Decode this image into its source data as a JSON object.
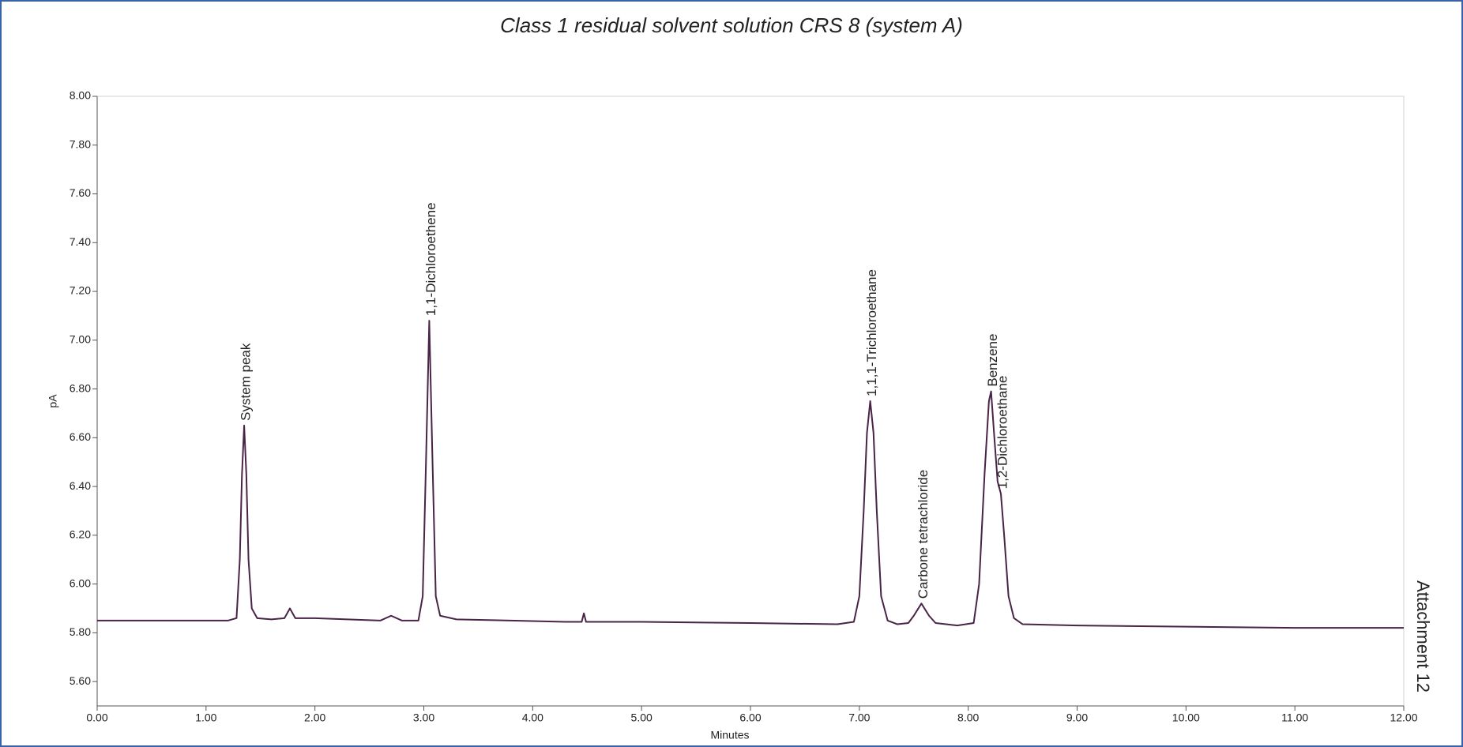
{
  "chart_data": {
    "type": "line",
    "title": "Class 1 residual solvent solution CRS 8 (system A)",
    "x_label": "Minutes",
    "y_label": "pA",
    "side_note": "Attachment 12",
    "x": [
      0,
      0.5,
      1.0,
      1.2,
      1.28,
      1.31,
      1.33,
      1.35,
      1.37,
      1.39,
      1.42,
      1.47,
      1.6,
      1.72,
      1.77,
      1.82,
      2.0,
      2.3,
      2.6,
      2.7,
      2.8,
      2.95,
      2.99,
      3.02,
      3.05,
      3.08,
      3.11,
      3.15,
      3.3,
      3.8,
      4.3,
      4.45,
      4.47,
      4.49,
      5.0,
      6.0,
      6.8,
      6.95,
      7.0,
      7.04,
      7.07,
      7.1,
      7.13,
      7.16,
      7.2,
      7.26,
      7.35,
      7.45,
      7.5,
      7.57,
      7.64,
      7.7,
      7.9,
      8.05,
      8.1,
      8.15,
      8.19,
      8.21,
      8.24,
      8.27,
      8.3,
      8.33,
      8.37,
      8.42,
      8.5,
      9.0,
      10.0,
      11.0,
      12.0
    ],
    "series": [
      {
        "color": "#4a2446",
        "values": [
          5.85,
          5.85,
          5.85,
          5.85,
          5.86,
          6.1,
          6.45,
          6.65,
          6.45,
          6.1,
          5.9,
          5.86,
          5.855,
          5.86,
          5.9,
          5.86,
          5.86,
          5.855,
          5.85,
          5.87,
          5.85,
          5.85,
          5.95,
          6.5,
          7.08,
          6.5,
          5.95,
          5.87,
          5.855,
          5.85,
          5.845,
          5.845,
          5.88,
          5.845,
          5.845,
          5.84,
          5.835,
          5.845,
          5.95,
          6.3,
          6.62,
          6.75,
          6.62,
          6.3,
          5.95,
          5.85,
          5.835,
          5.84,
          5.87,
          5.92,
          5.87,
          5.84,
          5.83,
          5.84,
          6.0,
          6.45,
          6.75,
          6.79,
          6.6,
          6.42,
          6.37,
          6.2,
          5.95,
          5.86,
          5.835,
          5.83,
          5.825,
          5.82,
          5.82
        ]
      }
    ],
    "annotations": [
      {
        "text": "System peak",
        "x": 1.35,
        "y": 6.65
      },
      {
        "text": "1,1-Dichloroethene",
        "x": 3.05,
        "y": 7.08
      },
      {
        "text": "1,1,1-Trichloroethane",
        "x": 7.1,
        "y": 6.75
      },
      {
        "text": "Carbone tetrachloride",
        "x": 7.57,
        "y": 5.92
      },
      {
        "text": "Benzene",
        "x": 8.21,
        "y": 6.79
      },
      {
        "text": "1,2-Dichloroethane",
        "x": 8.3,
        "y": 6.37
      }
    ],
    "xlim": [
      0,
      12
    ],
    "ylim": [
      5.5,
      8.0
    ],
    "xticks": [
      {
        "value": 0,
        "label": "0.00"
      },
      {
        "value": 1,
        "label": "1.00"
      },
      {
        "value": 2,
        "label": "2.00"
      },
      {
        "value": 3,
        "label": "3.00"
      },
      {
        "value": 4,
        "label": "4.00"
      },
      {
        "value": 5,
        "label": "5.00"
      },
      {
        "value": 6,
        "label": "6.00"
      },
      {
        "value": 7,
        "label": "7.00"
      },
      {
        "value": 8,
        "label": "8.00"
      },
      {
        "value": 9,
        "label": "9.00"
      },
      {
        "value": 10,
        "label": "10.00"
      },
      {
        "value": 11,
        "label": "11.00"
      },
      {
        "value": 12,
        "label": "12.00"
      }
    ],
    "yticks": [
      {
        "value": 5.6,
        "label": "5.60"
      },
      {
        "value": 5.8,
        "label": "5.80"
      },
      {
        "value": 6.0,
        "label": "6.00"
      },
      {
        "value": 6.2,
        "label": "6.20"
      },
      {
        "value": 6.4,
        "label": "6.40"
      },
      {
        "value": 6.6,
        "label": "6.60"
      },
      {
        "value": 6.8,
        "label": "6.80"
      },
      {
        "value": 7.0,
        "label": "7.00"
      },
      {
        "value": 7.2,
        "label": "7.20"
      },
      {
        "value": 7.4,
        "label": "7.40"
      },
      {
        "value": 7.6,
        "label": "7.60"
      },
      {
        "value": 7.8,
        "label": "7.80"
      },
      {
        "value": 8.0,
        "label": "8.00"
      }
    ]
  }
}
